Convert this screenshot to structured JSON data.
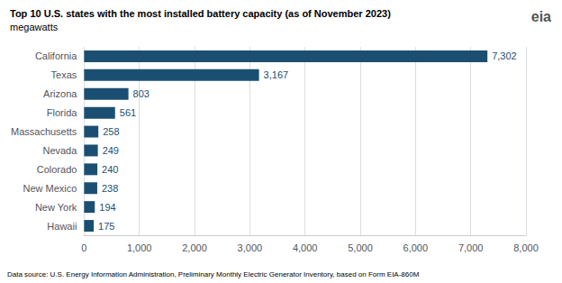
{
  "chart_data": {
    "type": "bar",
    "orientation": "horizontal",
    "title": "Top 10 U.S. states with the most installed battery capacity (as of November 2023)",
    "subtitle": "megawatts",
    "annotations": [
      "Data source: U.S. Energy Information Administration, Preliminary Monthly Electric Generator Inventory, based on Form EIA-860M",
      "eia"
    ],
    "categories": [
      "Hawaii",
      "New York",
      "New Mexico",
      "Colorado",
      "Nevada",
      "Massachusetts",
      "Florida",
      "Arizona",
      "Texas",
      "California"
    ],
    "values": [
      175,
      194,
      238,
      240,
      249,
      258,
      561,
      803,
      3167,
      7302
    ],
    "value_labels": [
      "175",
      "194",
      "238",
      "240",
      "249",
      "258",
      "561",
      "803",
      "3,167",
      "7,302"
    ],
    "data_labels": true,
    "color": "#1b4f72",
    "xlim": [
      0,
      8000
    ],
    "xticks": [
      0,
      {
        "value": 1000,
        "label": "1,000"
      },
      {
        "value": 2000,
        "label": "2,000"
      },
      {
        "value": 3000,
        "label": "3,000"
      },
      {
        "value": 4000,
        "label": "4,000"
      },
      {
        "value": 5000,
        "label": "5,000"
      },
      {
        "value": 6000,
        "label": "6,000"
      },
      {
        "value": 7000,
        "label": "7,000"
      },
      {
        "value": 8000,
        "label": "8,000"
      }
    ],
    "grid": true
  }
}
